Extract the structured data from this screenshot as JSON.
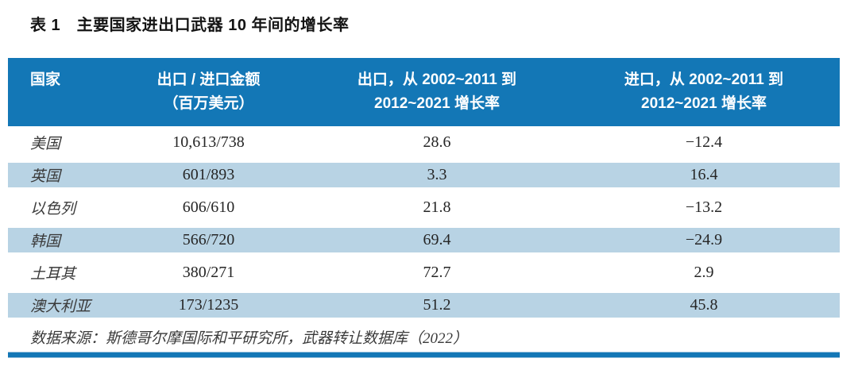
{
  "title": "表 1　主要国家进出口武器 10 年间的增长率",
  "table": {
    "header": [
      {
        "line1": "国家",
        "line2": ""
      },
      {
        "line1": "出口 / 进口金额",
        "line2": "（百万美元）"
      },
      {
        "line1": "出口，从 2002~2011 到",
        "line2": "2012~2021 增长率"
      },
      {
        "line1": "进口，从 2002~2011 到",
        "line2": "2012~2021 增长率"
      }
    ],
    "rows": [
      {
        "country": "美国",
        "amount": "10,613/738",
        "export_growth": "28.6",
        "import_growth": "−12.4"
      },
      {
        "country": "英国",
        "amount": "601/893",
        "export_growth": "3.3",
        "import_growth": "16.4"
      },
      {
        "country": "以色列",
        "amount": "606/610",
        "export_growth": "21.8",
        "import_growth": "−13.2"
      },
      {
        "country": "韩国",
        "amount": "566/720",
        "export_growth": "69.4",
        "import_growth": "−24.9"
      },
      {
        "country": "土耳其",
        "amount": "380/271",
        "export_growth": "72.7",
        "import_growth": "2.9"
      },
      {
        "country": "澳大利亚",
        "amount": "173/1235",
        "export_growth": "51.2",
        "import_growth": "45.8"
      }
    ],
    "source": "数据来源：斯德哥尔摩国际和平研究所，武器转让数据库（2022）"
  },
  "colors": {
    "header_bg": "#1377b6",
    "stripe_bg": "#b8d3e4",
    "bottom_bar": "#1377b6",
    "header_text": "#ffffff",
    "body_text": "#262626"
  },
  "chart_data": {
    "type": "table",
    "title": "表 1 主要国家进出口武器 10 年间的增长率",
    "columns": [
      "国家",
      "出口 / 进口金额（百万美元）",
      "出口，从 2002~2011 到 2012~2021 增长率",
      "进口，从 2002~2011 到 2012~2021 增长率"
    ],
    "rows": [
      {
        "country": "美国",
        "export_amount_musd": 10613,
        "import_amount_musd": 738,
        "export_growth_pct": 28.6,
        "import_growth_pct": -12.4
      },
      {
        "country": "英国",
        "export_amount_musd": 601,
        "import_amount_musd": 893,
        "export_growth_pct": 3.3,
        "import_growth_pct": 16.4
      },
      {
        "country": "以色列",
        "export_amount_musd": 606,
        "import_amount_musd": 610,
        "export_growth_pct": 21.8,
        "import_growth_pct": -13.2
      },
      {
        "country": "韩国",
        "export_amount_musd": 566,
        "import_amount_musd": 720,
        "export_growth_pct": 69.4,
        "import_growth_pct": -24.9
      },
      {
        "country": "土耳其",
        "export_amount_musd": 380,
        "import_amount_musd": 271,
        "export_growth_pct": 72.7,
        "import_growth_pct": 2.9
      },
      {
        "country": "澳大利亚",
        "export_amount_musd": 173,
        "import_amount_musd": 1235,
        "export_growth_pct": 51.2,
        "import_growth_pct": 45.8
      }
    ],
    "source": "数据来源：斯德哥尔摩国际和平研究所，武器转让数据库（2022）",
    "layout": {
      "striped_rows": [
        1,
        3,
        5
      ],
      "header_position": "top",
      "grid": false
    }
  }
}
